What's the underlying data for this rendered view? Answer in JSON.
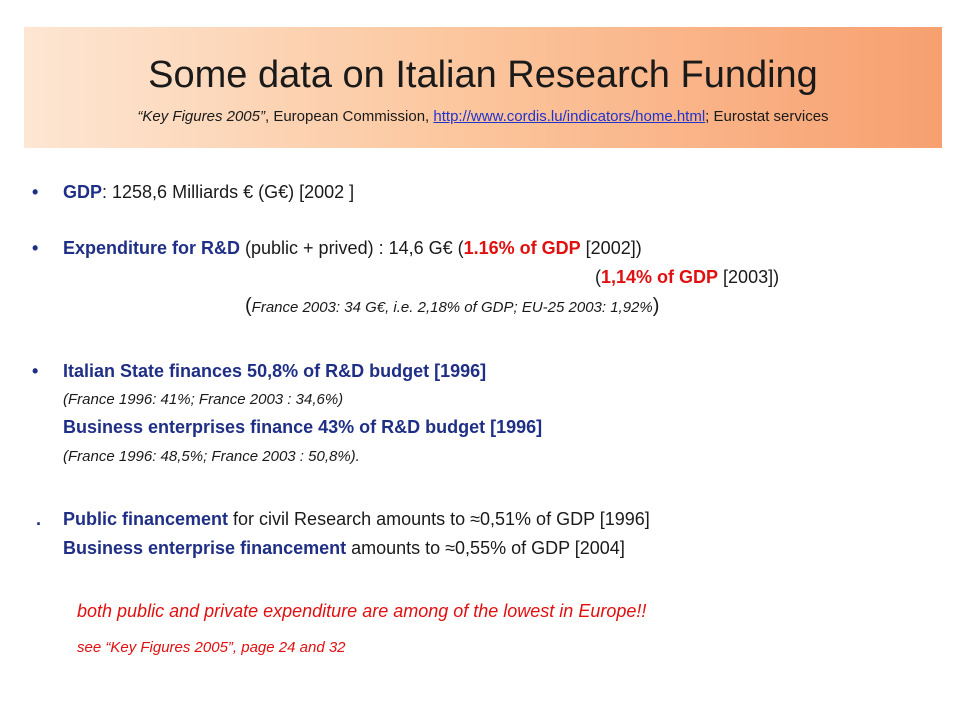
{
  "header": {
    "title": "Some data on Italian Research Funding",
    "subtitle_quote": "“Key Figures 2005”",
    "subtitle_mid": ", European Commission, ",
    "subtitle_link": "http://www.cordis.lu/indicators/home.html",
    "subtitle_end": "; Eurostat services"
  },
  "colors": {
    "navy": "#1f2f86",
    "red": "#e01010",
    "link": "#2233cc",
    "banner": "#f9b88a"
  },
  "items": {
    "bullet": "•",
    "gdp_label": "GDP",
    "gdp_value": ":   1258,6 Milliards €  (G€)  [2002 ]",
    "rd_label": "Expenditure for R&D",
    "rd_rest": " (public + prived) : 14,6 G€ (",
    "rd_pct1": "1.16% of GDP",
    "rd_year1": " [2002])",
    "rd2_open": "(",
    "rd_pct2": "1,14% of GDP",
    "rd_year2": " [2003])",
    "france_open": "(",
    "france_text": "France 2003: 34 G€, i.e. 2,18% of GDP; EU-25 2003: 1,92%",
    "france_close": ")",
    "state_line": "Italian State finances 50,8% of R&D budget [1996]",
    "state_note": "(France 1996: 41%; France 2003 : 34,6%)",
    "business_line": "Business enterprises finance 43% of R&D budget [1996]",
    "business_note": "(France 1996: 48,5%; France 2003 : 50,8%).",
    "dot": ".",
    "public_label": "Public financement",
    "public_rest": " for civil Research amounts to ≈0,51% of GDP [1996]",
    "ent_label": "Business enterprise financement",
    "ent_rest": " amounts to ≈0,55% of GDP [2004]",
    "conclusion": "both public and private expenditure are among of the lowest in Europe!!",
    "see_ref": "see “Key Figures 2005”, page 24 and 32"
  }
}
